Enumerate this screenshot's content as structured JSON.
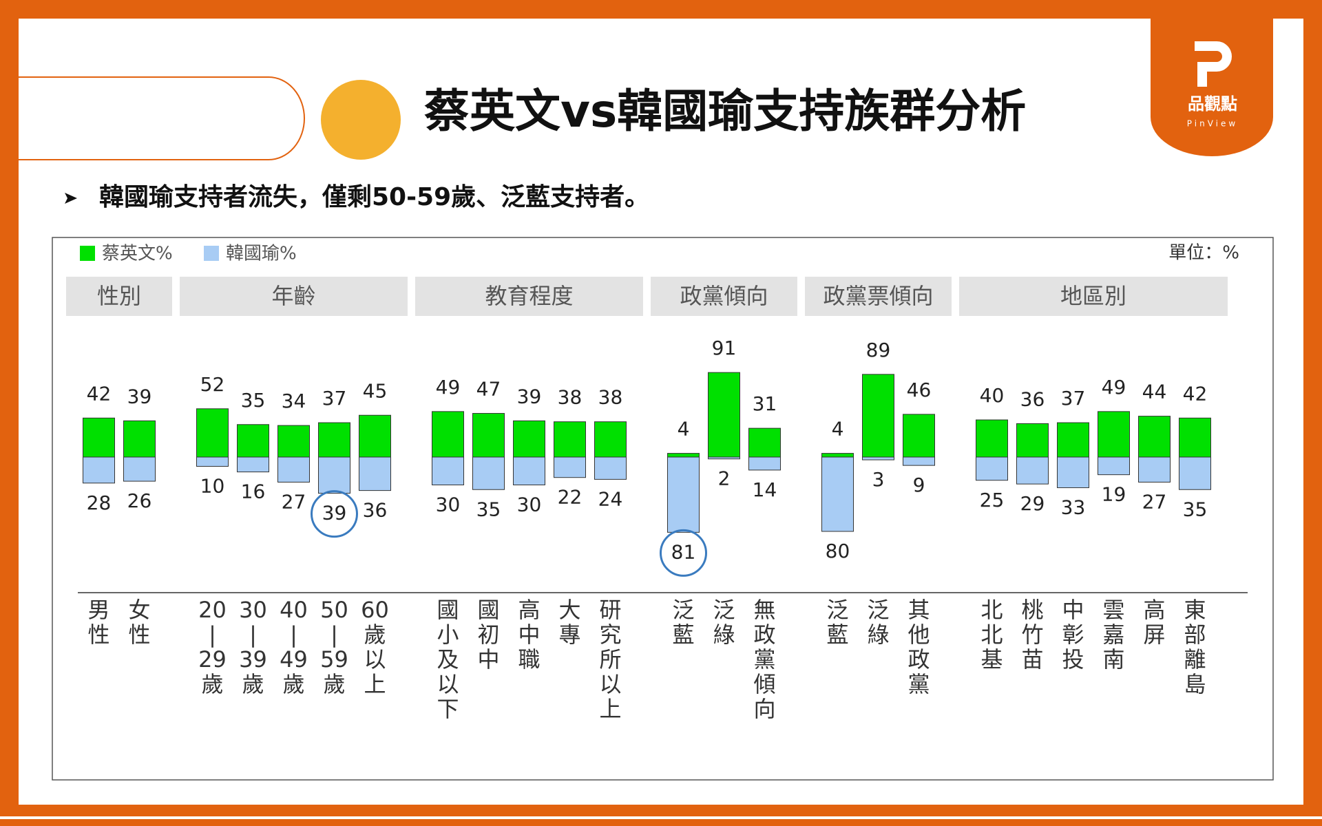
{
  "header": {
    "title": "蔡英文vs韓國瑜支持族群分析",
    "bullet": "韓國瑜支持者流失，僅剩50-59歲、泛藍支持者。",
    "logo": "品觀點",
    "logo_sub": "PinView"
  },
  "chart_data": {
    "type": "diverging-bar",
    "unit": "單位：%",
    "series": [
      {
        "name": "蔡英文%",
        "color": "#00e000"
      },
      {
        "name": "韓國瑜%",
        "color": "#a8ccf4"
      }
    ],
    "groups": [
      {
        "name": "性別",
        "categories": [
          [
            "男",
            "性"
          ],
          [
            "女",
            "性"
          ]
        ],
        "values": [
          [
            42,
            39
          ],
          [
            28,
            26
          ]
        ]
      },
      {
        "name": "年齡",
        "categories": [
          [
            "20",
            "|",
            "29",
            "歲"
          ],
          [
            "30",
            "|",
            "39",
            "歲"
          ],
          [
            "40",
            "|",
            "49",
            "歲"
          ],
          [
            "50",
            "|",
            "59",
            "歲"
          ],
          [
            "60",
            "歲",
            "以",
            "上"
          ]
        ],
        "values": [
          [
            52,
            35,
            34,
            37,
            45
          ],
          [
            10,
            16,
            27,
            39,
            36
          ]
        ]
      },
      {
        "name": "教育程度",
        "categories": [
          [
            "國",
            "小",
            "及",
            "以",
            "下"
          ],
          [
            "國",
            "初",
            "中"
          ],
          [
            "高",
            "中",
            "職"
          ],
          [
            "大",
            "專"
          ],
          [
            "研",
            "究",
            "所",
            "以",
            "上"
          ]
        ],
        "values": [
          [
            49,
            47,
            39,
            38,
            38
          ],
          [
            30,
            35,
            30,
            22,
            24
          ]
        ]
      },
      {
        "name": "政黨傾向",
        "categories": [
          [
            "泛",
            "藍"
          ],
          [
            "泛",
            "綠"
          ],
          [
            "無",
            "政",
            "黨",
            "傾",
            "向"
          ]
        ],
        "values": [
          [
            4,
            91,
            31
          ],
          [
            81,
            2,
            14
          ]
        ]
      },
      {
        "name": "政黨票傾向",
        "categories": [
          [
            "泛",
            "藍"
          ],
          [
            "泛",
            "綠"
          ],
          [
            "其",
            "他",
            "政",
            "黨"
          ]
        ],
        "values": [
          [
            4,
            89,
            46
          ],
          [
            80,
            3,
            9
          ]
        ]
      },
      {
        "name": "地區別",
        "categories": [
          [
            "北",
            "北",
            "基"
          ],
          [
            "桃",
            "竹",
            "苗"
          ],
          [
            "中",
            "彰",
            "投"
          ],
          [
            "雲",
            "嘉",
            "南"
          ],
          [
            "高",
            "屏"
          ],
          [
            "東",
            "部",
            "離",
            "島"
          ]
        ],
        "values": [
          [
            40,
            36,
            37,
            49,
            44,
            42
          ],
          [
            25,
            29,
            33,
            19,
            27,
            35
          ]
        ]
      }
    ],
    "highlights": [
      {
        "group": 1,
        "series": 1,
        "index": 3
      },
      {
        "group": 3,
        "series": 1,
        "index": 0
      }
    ]
  }
}
